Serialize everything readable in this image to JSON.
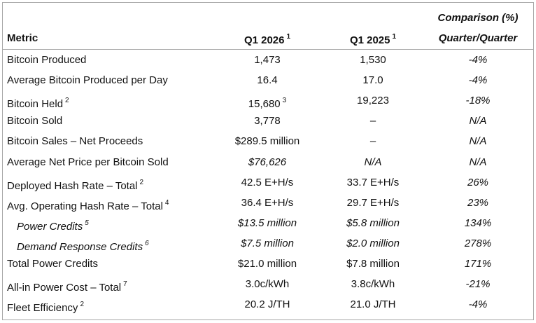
{
  "table": {
    "header": {
      "metric": "Metric",
      "q1_2026": "Q1 2026",
      "q1_2026_note": "1",
      "q1_2025": "Q1 2025",
      "q1_2025_note": "1",
      "comparison": "Comparison (%)",
      "comparison_sub": "Quarter/Quarter"
    },
    "rows": [
      {
        "metric": "Bitcoin Produced",
        "q1_2026": "1,473",
        "q1_2025": "1,530",
        "change": "-4%"
      },
      {
        "metric": "Average Bitcoin Produced per Day",
        "q1_2026": "16.4",
        "q1_2025": "17.0",
        "change": "-4%"
      },
      {
        "metric": "Bitcoin Held",
        "metric_note": "2",
        "q1_2026": "15,680",
        "q1_2026_note": "3",
        "q1_2025": "19,223",
        "change": "-18%"
      },
      {
        "metric": "Bitcoin Sold",
        "q1_2026": "3,778",
        "q1_2025": "–",
        "change": "N/A"
      },
      {
        "metric": "Bitcoin Sales – Net Proceeds",
        "q1_2026": "$289.5 million",
        "q1_2025": "–",
        "change": "N/A"
      },
      {
        "metric": "Average Net Price per Bitcoin Sold",
        "q1_2026": "$76,626",
        "q1_2025": "N/A",
        "change": "N/A"
      },
      {
        "metric": "Deployed Hash Rate – Total",
        "metric_note": "2",
        "q1_2026": "42.5 E+H/s",
        "q1_2025": "33.7 E+H/s",
        "change": "26%"
      },
      {
        "metric": "Avg. Operating Hash Rate – Total",
        "metric_note": "4",
        "q1_2026": "36.4 E+H/s",
        "q1_2025": "29.7 E+H/s",
        "change": "23%"
      },
      {
        "metric": "Power Credits",
        "metric_note": "5",
        "q1_2026": "$13.5 million",
        "q1_2025": "$5.8 million",
        "change": "134%"
      },
      {
        "metric": "Demand Response Credits",
        "metric_note": "6",
        "q1_2026": "$7.5 million",
        "q1_2025": "$2.0 million",
        "change": "278%"
      },
      {
        "metric": "Total Power Credits",
        "q1_2026": "$21.0 million",
        "q1_2025": "$7.8 million",
        "change": "171%"
      },
      {
        "metric": "All-in Power Cost – Total",
        "metric_note": "7",
        "q1_2026": "3.0c/kWh",
        "q1_2025": "3.8c/kWh",
        "change": "-21%"
      },
      {
        "metric": "Fleet Efficiency",
        "metric_note": "2",
        "q1_2026": "20.2 J/TH",
        "q1_2025": "21.0 J/TH",
        "change": "-4%"
      }
    ]
  }
}
